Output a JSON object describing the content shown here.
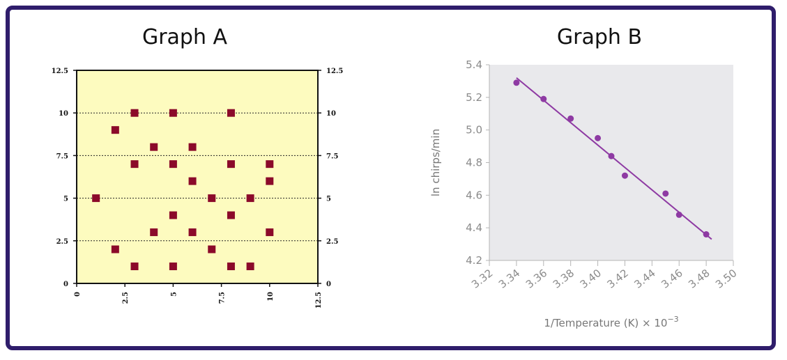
{
  "colors": {
    "frame": "#2f1d6b",
    "plotA_bg": "#fdfbbf",
    "markerA": "#8b0a2a",
    "plotB_bg": "#e9e9ec",
    "markerB": "#8e3aa3",
    "lineB": "#8e3aa3",
    "tickB": "#8a8a8a"
  },
  "chart_data": [
    {
      "type": "scatter",
      "title": "Graph A",
      "xlim": [
        0,
        12.5
      ],
      "ylim": [
        0,
        12.5
      ],
      "xticks": [
        "0",
        "2.5",
        "5",
        "7.5",
        "10",
        "12.5"
      ],
      "yticks": [
        "0",
        "2.5",
        "5",
        "7.5",
        "10",
        "12.5"
      ],
      "gridlines_y": [
        2.5,
        5,
        7.5,
        10
      ],
      "points": [
        [
          3,
          10
        ],
        [
          5,
          10
        ],
        [
          8,
          10
        ],
        [
          2,
          9
        ],
        [
          4,
          8
        ],
        [
          6,
          8
        ],
        [
          3,
          7
        ],
        [
          5,
          7
        ],
        [
          8,
          7
        ],
        [
          10,
          7
        ],
        [
          6,
          6
        ],
        [
          10,
          6
        ],
        [
          1,
          5
        ],
        [
          7,
          5
        ],
        [
          9,
          5
        ],
        [
          5,
          4
        ],
        [
          8,
          4
        ],
        [
          4,
          3
        ],
        [
          6,
          3
        ],
        [
          10,
          3
        ],
        [
          2,
          2
        ],
        [
          7,
          2
        ],
        [
          3,
          1
        ],
        [
          5,
          1
        ],
        [
          8,
          1
        ],
        [
          9,
          1
        ]
      ]
    },
    {
      "type": "scatter",
      "title": "Graph B",
      "xlabel": "1/Temperature (K) × 10",
      "xlabel_exp": "−3",
      "ylabel": "ln chirps/min",
      "xlim": [
        3.32,
        3.5
      ],
      "ylim": [
        4.2,
        5.4
      ],
      "xticks": [
        "3.32",
        "3.34",
        "3.36",
        "3.38",
        "3.40",
        "3.42",
        "3.44",
        "3.46",
        "3.48",
        "3.50"
      ],
      "yticks": [
        "4.2",
        "4.4",
        "4.6",
        "4.8",
        "5.0",
        "5.2",
        "5.4"
      ],
      "points": [
        [
          3.34,
          5.29
        ],
        [
          3.36,
          5.19
        ],
        [
          3.38,
          5.07
        ],
        [
          3.4,
          4.95
        ],
        [
          3.41,
          4.84
        ],
        [
          3.42,
          4.72
        ],
        [
          3.45,
          4.61
        ],
        [
          3.46,
          4.48
        ],
        [
          3.48,
          4.36
        ]
      ],
      "fit_line": {
        "x": [
          3.34,
          3.484
        ],
        "y": [
          5.32,
          4.33
        ]
      }
    }
  ]
}
